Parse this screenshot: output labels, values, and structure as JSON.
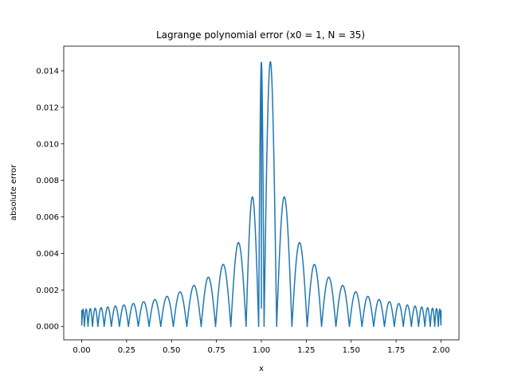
{
  "chart_data": {
    "type": "line",
    "title": "Lagrange polynomial error (x0 = 1, N = 35)",
    "xlabel": "x",
    "ylabel": "absolute error",
    "xlim": [
      -0.1,
      2.1
    ],
    "ylim": [
      -0.00073,
      0.01535
    ],
    "x_ticks": [
      0.0,
      0.25,
      0.5,
      0.75,
      1.0,
      1.25,
      1.5,
      1.75,
      2.0
    ],
    "x_tick_labels": [
      "0.00",
      "0.25",
      "0.50",
      "0.75",
      "1.00",
      "1.25",
      "1.50",
      "1.75",
      "2.00"
    ],
    "y_ticks": [
      0.0,
      0.002,
      0.004,
      0.006,
      0.008,
      0.01,
      0.012,
      0.014
    ],
    "y_tick_labels": [
      "0.000",
      "0.002",
      "0.004",
      "0.006",
      "0.008",
      "0.010",
      "0.012",
      "0.014"
    ],
    "grid": false,
    "legend": "none",
    "series": [
      {
        "color": "#1f77b4",
        "x_range": [
          0.0,
          2.0
        ],
        "interval_boundaries": [
          0.0,
          0.015,
          0.035,
          0.06,
          0.09,
          0.125,
          0.165,
          0.21,
          0.26,
          0.315,
          0.375,
          0.44,
          0.51,
          0.585,
          0.665,
          0.745,
          0.83,
          0.915,
          0.985,
          1.015,
          1.085,
          1.17,
          1.255,
          1.335,
          1.415,
          1.49,
          1.56,
          1.625,
          1.685,
          1.74,
          1.79,
          1.835,
          1.875,
          1.91,
          1.94,
          1.965,
          1.985,
          2.0
        ],
        "interval_peaks": [
          0.00095,
          0.00095,
          0.00098,
          0.001,
          0.00103,
          0.00107,
          0.00112,
          0.00118,
          0.00126,
          0.00136,
          0.00148,
          0.00165,
          0.0019,
          0.00225,
          0.0027,
          0.0034,
          0.0046,
          0.0071,
          0.0145,
          0.0145,
          0.0071,
          0.0046,
          0.0034,
          0.0027,
          0.00225,
          0.0019,
          0.00165,
          0.00148,
          0.00136,
          0.00126,
          0.00118,
          0.00112,
          0.00107,
          0.00103,
          0.001,
          0.00098,
          0.00095
        ],
        "endpoint_value": 0.0009,
        "center_value": 0.001
      }
    ]
  }
}
